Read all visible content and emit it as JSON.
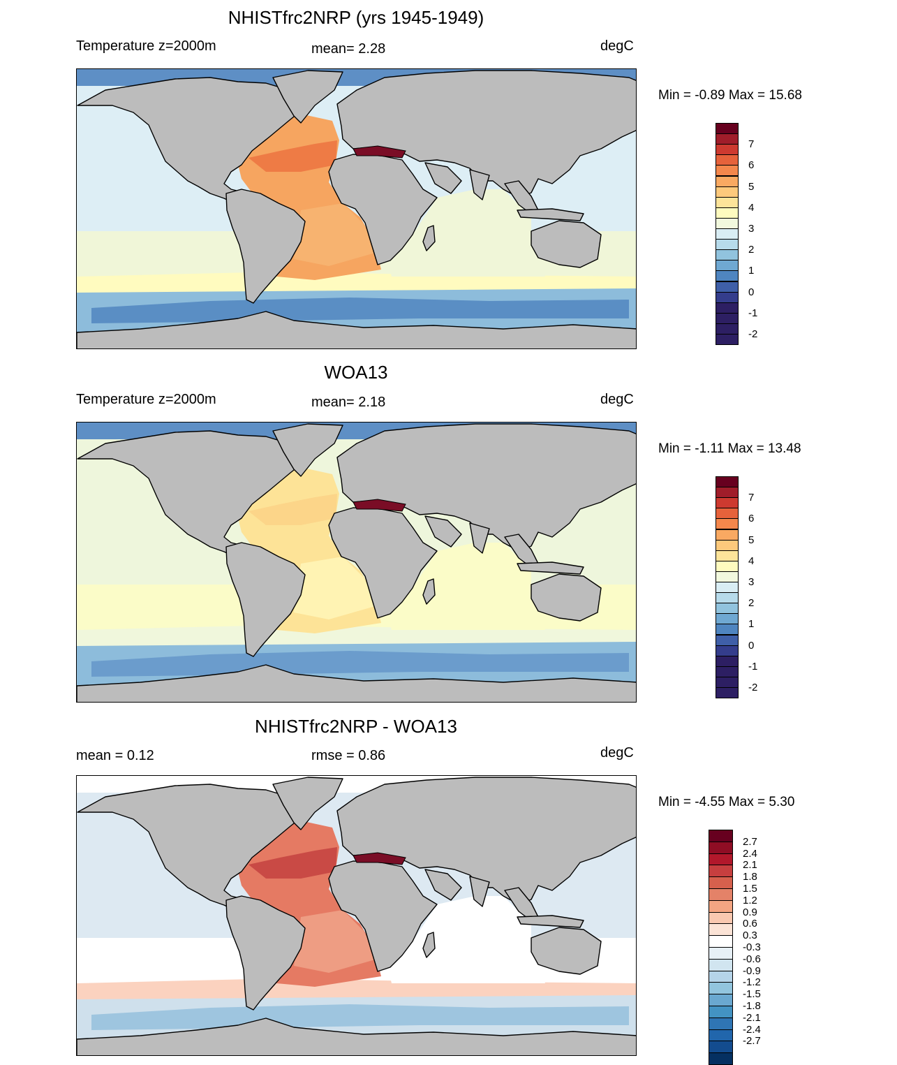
{
  "panels": [
    {
      "title": "NHISTfrc2NRP (yrs 1945-1949)",
      "left_label": "Temperature z=2000m",
      "center_label": "mean=   2.28",
      "units": "degC",
      "minmax": "Min =  -0.89 Max =  15.68",
      "colorbar_labels": [
        "7",
        "6",
        "5",
        "4",
        "3",
        "2",
        "1",
        "0",
        "-1",
        "-2"
      ],
      "colors": {
        "atlantic": "#f6a560",
        "atlantic_deep": "#ee7b45",
        "south_atlantic": "#f7b370",
        "indian": "#f0f6d8",
        "pacific": "#ddeef5",
        "band_warm": "#fffbbf",
        "southern": "#8dbcdb",
        "southern_deep": "#5a8ec4",
        "arctic": "#5e8fc5",
        "hot": "#7a0d26"
      }
    },
    {
      "title": "WOA13",
      "left_label": "Temperature z=2000m",
      "center_label": "mean=   2.18",
      "units": "degC",
      "minmax": "Min =  -1.11 Max =  13.48",
      "colorbar_labels": [
        "7",
        "6",
        "5",
        "4",
        "3",
        "2",
        "1",
        "0",
        "-1",
        "-2"
      ],
      "colors": {
        "atlantic": "#fde397",
        "atlantic_deep": "#fcd589",
        "south_atlantic": "#fff3b3",
        "indian": "#fbfcc8",
        "pacific": "#eef6dc",
        "band_warm": "#f0f7dc",
        "southern": "#8dbcdb",
        "southern_deep": "#6b9ccc",
        "arctic": "#5e8fc5",
        "hot": "#7a0d26"
      }
    },
    {
      "title": "NHISTfrc2NRP - WOA13",
      "left_label": "mean =   0.12",
      "center_label": "rmse =   0.86",
      "units": "degC",
      "minmax": "Min =  -4.55 Max =   5.30",
      "colorbar_labels": [
        "2.7",
        "2.4",
        "2.1",
        "1.8",
        "1.5",
        "1.2",
        "0.9",
        "0.6",
        "0.3",
        "-0.3",
        "-0.6",
        "-0.9",
        "-1.2",
        "-1.5",
        "-1.8",
        "-2.1",
        "-2.4",
        "-2.7"
      ],
      "colors": {
        "atlantic": "#e57a63",
        "atlantic_deep": "#c94a45",
        "south_atlantic": "#ee9d83",
        "indian": "#ffffff",
        "pacific": "#dde9f2",
        "band_warm": "#fbd2bf",
        "southern": "#cfe0ec",
        "southern_deep": "#9ec5df",
        "arctic": "#ffffff",
        "hot": "#7a0d26"
      }
    }
  ]
}
